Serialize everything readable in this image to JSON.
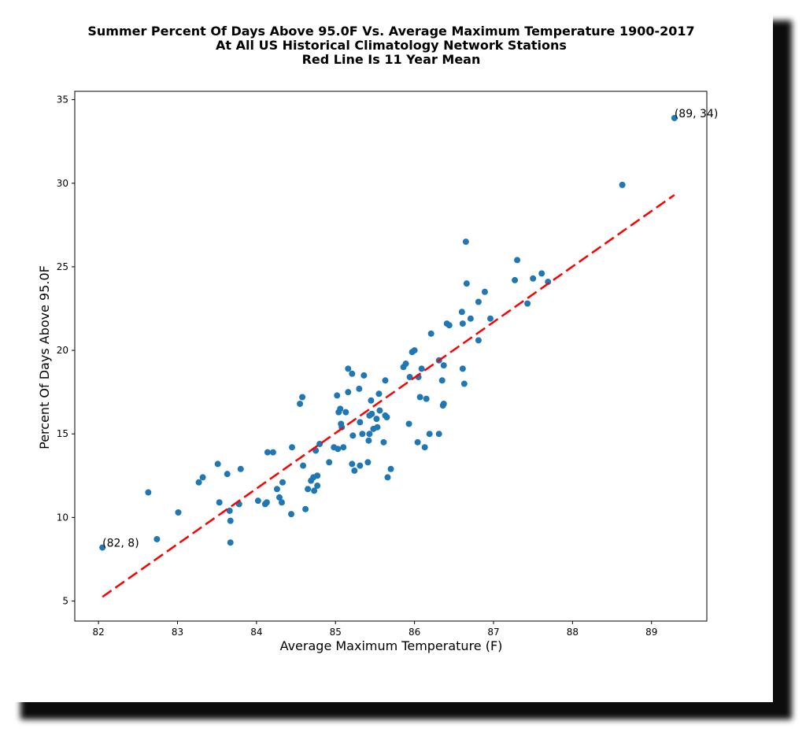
{
  "chart_data": {
    "type": "scatter",
    "title_lines": [
      "Summer Percent Of Days Above 95.0F Vs. Average Maximum Temperature 1900-2017",
      "At All US Historical Climatology Network Stations",
      "Red Line Is 11 Year Mean"
    ],
    "xlabel": "Average Maximum Temperature (F)",
    "ylabel": "Percent Of Days Above 95.0F",
    "xlim": [
      81.7,
      89.7
    ],
    "ylim": [
      3.8,
      35.5
    ],
    "xticks": [
      82,
      83,
      84,
      85,
      86,
      87,
      88,
      89
    ],
    "yticks": [
      5,
      10,
      15,
      20,
      25,
      30,
      35
    ],
    "grid": false,
    "colors": {
      "points": "#1f77b4",
      "trend": "#ff0000"
    },
    "series": [
      {
        "points": [
          [
            82.05,
            8.2
          ],
          [
            82.63,
            11.5
          ],
          [
            82.74,
            8.7
          ],
          [
            83.01,
            10.3
          ],
          [
            83.27,
            12.1
          ],
          [
            83.32,
            12.4
          ],
          [
            83.51,
            13.2
          ],
          [
            83.53,
            10.9
          ],
          [
            83.63,
            12.6
          ],
          [
            83.66,
            10.4
          ],
          [
            83.67,
            9.8
          ],
          [
            83.67,
            8.5
          ],
          [
            83.8,
            12.9
          ],
          [
            83.78,
            10.8
          ],
          [
            84.02,
            11.0
          ],
          [
            84.11,
            10.8
          ],
          [
            84.13,
            10.9
          ],
          [
            84.14,
            13.9
          ],
          [
            84.21,
            13.9
          ],
          [
            84.26,
            11.7
          ],
          [
            84.29,
            11.2
          ],
          [
            84.32,
            10.9
          ],
          [
            84.33,
            12.1
          ],
          [
            84.44,
            10.2
          ],
          [
            84.45,
            14.2
          ],
          [
            84.55,
            16.8
          ],
          [
            84.58,
            17.2
          ],
          [
            84.59,
            13.1
          ],
          [
            84.62,
            10.5
          ],
          [
            84.65,
            11.7
          ],
          [
            84.69,
            12.2
          ],
          [
            84.72,
            12.4
          ],
          [
            84.73,
            11.6
          ],
          [
            84.75,
            14.0
          ],
          [
            84.77,
            12.5
          ],
          [
            84.77,
            11.9
          ],
          [
            84.8,
            14.4
          ],
          [
            84.92,
            13.3
          ],
          [
            84.98,
            14.2
          ],
          [
            85.02,
            17.3
          ],
          [
            85.03,
            14.1
          ],
          [
            85.04,
            16.3
          ],
          [
            85.06,
            16.5
          ],
          [
            85.07,
            15.6
          ],
          [
            85.08,
            15.4
          ],
          [
            85.1,
            14.2
          ],
          [
            85.13,
            16.3
          ],
          [
            85.16,
            17.5
          ],
          [
            85.16,
            18.9
          ],
          [
            85.21,
            18.6
          ],
          [
            85.21,
            13.2
          ],
          [
            85.22,
            14.9
          ],
          [
            85.24,
            12.8
          ],
          [
            85.3,
            17.7
          ],
          [
            85.31,
            15.7
          ],
          [
            85.31,
            13.1
          ],
          [
            85.34,
            15.0
          ],
          [
            85.36,
            18.5
          ],
          [
            85.41,
            13.3
          ],
          [
            85.42,
            14.6
          ],
          [
            85.43,
            16.1
          ],
          [
            85.43,
            15.0
          ],
          [
            85.45,
            17.0
          ],
          [
            85.46,
            16.2
          ],
          [
            85.48,
            15.3
          ],
          [
            85.52,
            15.9
          ],
          [
            85.53,
            15.4
          ],
          [
            85.55,
            17.4
          ],
          [
            85.56,
            16.4
          ],
          [
            85.61,
            14.5
          ],
          [
            85.63,
            16.1
          ],
          [
            85.63,
            18.2
          ],
          [
            85.65,
            16.0
          ],
          [
            85.66,
            12.4
          ],
          [
            85.7,
            12.9
          ],
          [
            85.86,
            19.0
          ],
          [
            85.89,
            19.2
          ],
          [
            85.93,
            15.6
          ],
          [
            85.94,
            18.4
          ],
          [
            85.97,
            19.9
          ],
          [
            86.0,
            20.0
          ],
          [
            86.04,
            14.5
          ],
          [
            86.05,
            18.4
          ],
          [
            86.07,
            17.2
          ],
          [
            86.09,
            18.9
          ],
          [
            86.13,
            14.2
          ],
          [
            86.15,
            17.1
          ],
          [
            86.19,
            15.0
          ],
          [
            86.21,
            21.0
          ],
          [
            86.31,
            15.0
          ],
          [
            86.31,
            19.4
          ],
          [
            86.35,
            18.2
          ],
          [
            86.36,
            16.7
          ],
          [
            86.37,
            16.8
          ],
          [
            86.37,
            19.1
          ],
          [
            86.41,
            21.6
          ],
          [
            86.44,
            21.5
          ],
          [
            86.6,
            22.3
          ],
          [
            86.61,
            21.6
          ],
          [
            86.61,
            18.9
          ],
          [
            86.63,
            18.0
          ],
          [
            86.65,
            26.5
          ],
          [
            86.66,
            24.0
          ],
          [
            86.71,
            21.9
          ],
          [
            86.81,
            22.9
          ],
          [
            86.81,
            20.6
          ],
          [
            86.89,
            23.5
          ],
          [
            86.96,
            21.9
          ],
          [
            87.27,
            24.2
          ],
          [
            87.3,
            25.4
          ],
          [
            87.43,
            22.8
          ],
          [
            87.5,
            24.3
          ],
          [
            87.61,
            24.6
          ],
          [
            87.69,
            24.1
          ],
          [
            88.63,
            29.9
          ],
          [
            89.29,
            33.9
          ]
        ]
      }
    ],
    "trend": {
      "x": [
        82.05,
        89.29
      ],
      "y": [
        5.25,
        29.3
      ]
    },
    "annotations": [
      {
        "text": "(82, 8)",
        "x": 82.05,
        "y": 8.2
      },
      {
        "text": "(89, 34)",
        "x": 89.29,
        "y": 33.9
      }
    ]
  }
}
